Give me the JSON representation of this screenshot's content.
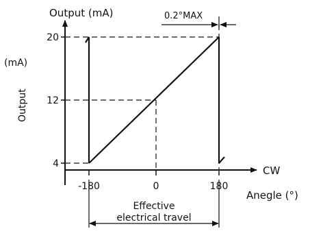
{
  "diagram": {
    "y_title": "Output (mA)",
    "y_side_unit": "(mA)",
    "y_side_label": "Output",
    "y_ticks": [
      "20",
      "12",
      "4"
    ],
    "x_ticks": [
      "-180",
      "0",
      "180"
    ],
    "x_arrow_label": "CW",
    "x_title": "Anegle (°)",
    "max_label": "0.2°MAX",
    "travel_line1": "Effective",
    "travel_line2": "electrical travel"
  },
  "chart_data": {
    "type": "line",
    "x": [
      -180,
      180
    ],
    "y": [
      4,
      20
    ],
    "xlim": [
      -180,
      180
    ],
    "ylim": [
      4,
      20
    ],
    "reference_point": {
      "x": 0,
      "y": 12
    },
    "title": "Output (mA)",
    "xlabel": "Anegle (°)",
    "ylabel": "Output (mA)"
  }
}
